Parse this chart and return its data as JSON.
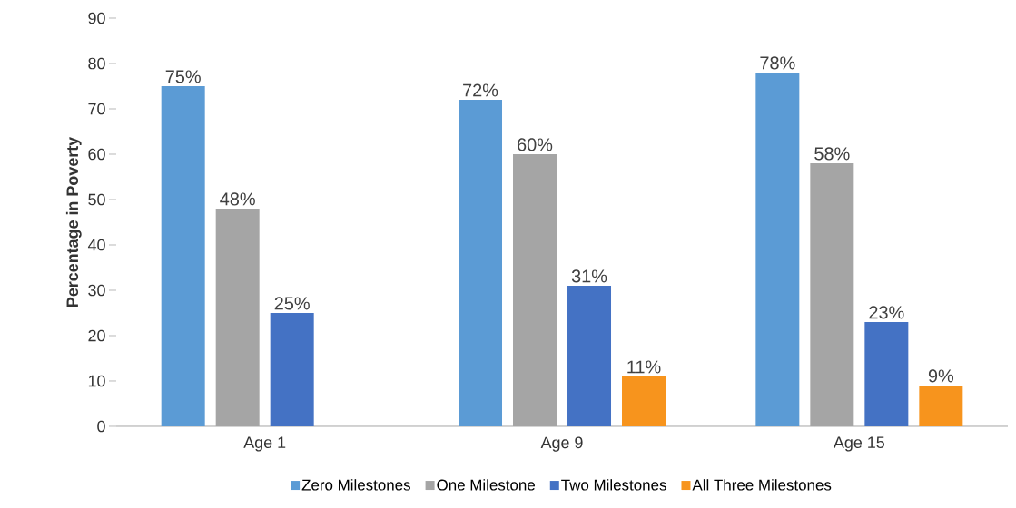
{
  "chart_data": {
    "type": "bar",
    "ylabel": "Percentage in Poverty",
    "categories": [
      "Age 1",
      "Age 9",
      "Age 15"
    ],
    "series": [
      {
        "name": "Zero Milestones",
        "color": "#5b9bd5",
        "values": [
          75,
          72,
          78
        ],
        "value_labels": [
          "75%",
          "72%",
          "78%"
        ]
      },
      {
        "name": "One Milestone",
        "color": "#a5a5a5",
        "values": [
          48,
          60,
          58
        ],
        "value_labels": [
          "48%",
          "60%",
          "58%"
        ]
      },
      {
        "name": "Two Milestones",
        "color": "#4472c4",
        "values": [
          25,
          31,
          23
        ],
        "value_labels": [
          "25%",
          "31%",
          "23%"
        ]
      },
      {
        "name": "All Three Milestones",
        "color": "#f7941d",
        "values": [
          null,
          11,
          9
        ],
        "value_labels": [
          null,
          "11%",
          "9%"
        ]
      }
    ],
    "ylim": [
      0,
      90
    ],
    "yticks": [
      0,
      10,
      20,
      30,
      40,
      50,
      60,
      70,
      80,
      90
    ],
    "legend": "bottom"
  }
}
